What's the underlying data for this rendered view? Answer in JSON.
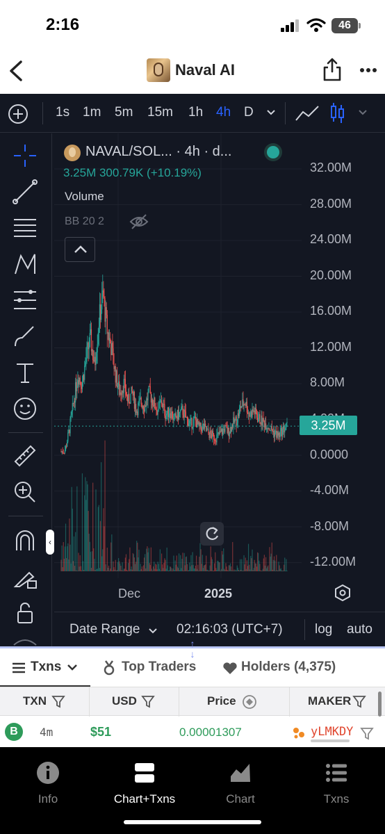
{
  "status_bar": {
    "time": "2:16",
    "battery": "46"
  },
  "header": {
    "title": "Naval AI"
  },
  "chart_toolbar": {
    "timeframes": [
      "1s",
      "1m",
      "5m",
      "15m",
      "1h",
      "4h",
      "D"
    ],
    "active_timeframe": "4h"
  },
  "legend": {
    "symbol": "NAVAL/SOL... · 4h · d...",
    "values": "3.25M  300.79K (+10.19%)",
    "volume_label": "Volume",
    "bb_label": "BB 20 2"
  },
  "chart_data": {
    "type": "candlestick",
    "title": "",
    "y_ticks": [
      "32.00M",
      "28.00M",
      "24.00M",
      "20.00M",
      "16.00M",
      "12.00M",
      "8.00M",
      "4.00M",
      "0.0000",
      "-4.00M",
      "-8.00M",
      "-12.00M"
    ],
    "ylim": [
      -14000000,
      34000000
    ],
    "x_ticks": [
      "Dec",
      "2025"
    ],
    "last_price": "3.25M",
    "approx_close_path": [
      0.4,
      0.6,
      3,
      6,
      9,
      8,
      11,
      13,
      10,
      15,
      18,
      14,
      12,
      9,
      7,
      8,
      6,
      7,
      5,
      6,
      5.5,
      7,
      6,
      5,
      6,
      4.5,
      5,
      4,
      4.5,
      5,
      4,
      3.5,
      4,
      3,
      3.2,
      2.5,
      2.2,
      2,
      2.4,
      3,
      2.6,
      3.5,
      4,
      5.5,
      6,
      4.5,
      5,
      4.2,
      3.8,
      3.5,
      3,
      2.5,
      2.2,
      2.8,
      3.25
    ]
  },
  "chart_bottom": {
    "date_range": "Date Range",
    "clock": "02:16:03 (UTC+7)",
    "log": "log",
    "auto": "auto"
  },
  "tabs": [
    {
      "label": "Txns"
    },
    {
      "label": "Top Traders"
    },
    {
      "label": "Holders (4,375)"
    }
  ],
  "table": {
    "headers": [
      "TXN",
      "USD",
      "Price",
      "MAKER"
    ],
    "rows": [
      {
        "type": "B",
        "age": "4m",
        "usd": "$51",
        "price": "0.00001307",
        "maker": "yLMKDY"
      }
    ]
  },
  "nav": [
    {
      "label": "Info",
      "icon": "info-icon"
    },
    {
      "label": "Chart+Txns",
      "icon": "layout-icon"
    },
    {
      "label": "Chart",
      "icon": "area-chart-icon"
    },
    {
      "label": "Txns",
      "icon": "list-icon"
    }
  ],
  "colors": {
    "up": "#26a69a",
    "down": "#ef5350",
    "accent": "#2962ff",
    "chart_bg": "#131722"
  }
}
